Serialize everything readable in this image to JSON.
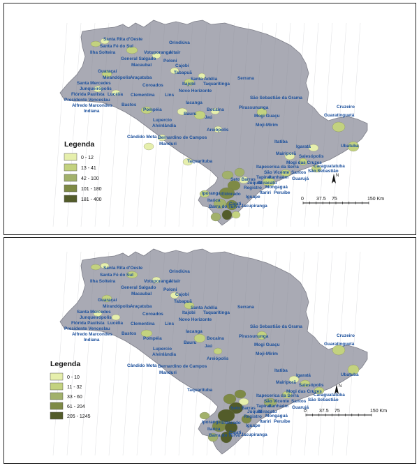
{
  "maps": [
    {
      "legend": {
        "title": "Legenda",
        "classes": [
          {
            "label": "0 - 12",
            "color": "#e6efac"
          },
          {
            "label": "13 - 41",
            "color": "#c3d27f"
          },
          {
            "label": "42 - 100",
            "color": "#a2b16b"
          },
          {
            "label": "101 - 180",
            "color": "#7e8a45"
          },
          {
            "label": "181 - 400",
            "color": "#535c2a"
          }
        ]
      }
    },
    {
      "legend": {
        "title": "Legenda",
        "classes": [
          {
            "label": "0 - 10",
            "color": "#e6efac"
          },
          {
            "label": "11 - 32",
            "color": "#c3d27f"
          },
          {
            "label": "33 - 60",
            "color": "#a2b16b"
          },
          {
            "label": "61 - 204",
            "color": "#7e8a45"
          },
          {
            "label": "205 - 1245",
            "color": "#535c2a"
          }
        ]
      }
    }
  ],
  "scale_bar": {
    "ticks": [
      "0",
      "37.5",
      "75",
      "150 Km"
    ]
  },
  "north_label": "N",
  "state_fill": "#a9aab4",
  "place_color": "#1a4f9c",
  "places": [
    "Santa Rita d'Oeste",
    "Orindiúva",
    "Santa Fé do Sul",
    "Ilha Solteira",
    "Votuporanga",
    "General Salgado",
    "Poloni",
    "Altair",
    "Macaubal",
    "Cajobi",
    "Tabapuã",
    "Guaraçaí",
    "Mirandópolis",
    "Araçatuba",
    "Santa Adélia",
    "Itajobi",
    "Taquaritinga",
    "Serrana",
    "Santa Mercedes",
    "Coroados",
    "Novo Horizonte",
    "Junqueirópolis",
    "Lins",
    "Flórida Paulista",
    "Lucélia",
    "Clementina",
    "São Sebastião da Grama",
    "Presidente Venceslau",
    "Alfredo Marcondes",
    "Bastos",
    "Pirassununga",
    "Iacanga",
    "Indiana",
    "Pompéia",
    "Bocaina",
    "Mogi Guaçu",
    "Lupercio",
    "Bauru",
    "Jaú",
    "Alvinlândia",
    "Moji-Mirim",
    "Areiópolis",
    "Cândido Mota",
    "Bernardino de Campos",
    "Cruzeiro",
    "Manduri",
    "Guaratinguetá",
    "Itatiba",
    "Igaratá",
    "Ubatuba",
    "Mairiporã",
    "Salesópolis",
    "Taquarituba",
    "Mogi das Cruzes",
    "Caraguatatuba",
    "Itapecerica da Serra",
    "São Vicente",
    "Santos",
    "São Sebastião",
    "Tapiraí",
    "Itanhaém",
    "Guarujá",
    "Seto Barras",
    "Juquiá",
    "Miracatu",
    "Mongaguá",
    "Registro",
    "Itariri",
    "Peruíbe",
    "Iporanga",
    "Eldorado",
    "Iguape",
    "Itaóca",
    "Cajati",
    "Jacupiranga",
    "Barra do Turvo"
  ]
}
